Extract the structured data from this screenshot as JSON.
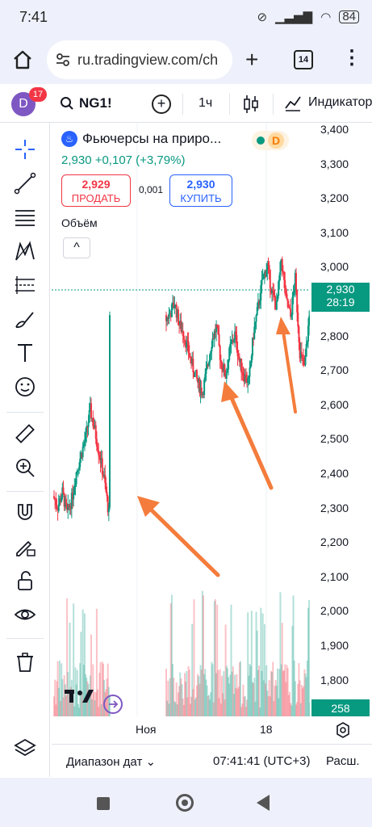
{
  "status_bar": {
    "time": "7:41",
    "battery": "84"
  },
  "browser": {
    "url": "ru.tradingview.com/ch",
    "tab_count": "14"
  },
  "header": {
    "avatar_letter": "D",
    "notifications": "17",
    "symbol": "NG1!",
    "interval": "1ч",
    "indicators_label": "Индикатор"
  },
  "legend": {
    "title": "Фьючерсы на приро...",
    "market_badge": "D",
    "price_change": "2,930  +0,107 (+3,79%)",
    "sell_price": "2,929",
    "sell_label": "ПРОДАТЬ",
    "spread": "0,001",
    "buy_price": "2,930",
    "buy_label": "КУПИТЬ",
    "volume_label": "Объём",
    "collapse_icon": "^"
  },
  "price_axis": {
    "ticks": [
      "3,400",
      "3,300",
      "3,200",
      "3,100",
      "3,000",
      "2,900",
      "2,800",
      "2,700",
      "2,600",
      "2,500",
      "2,400",
      "2,300",
      "2,200",
      "2,100",
      "2,000",
      "1,900",
      "1,800"
    ],
    "last_price": "2,930",
    "countdown": "28:19",
    "volume_value": "258",
    "color_up": "#089981",
    "color_down": "#f23645"
  },
  "time_axis": {
    "labels": [
      "Ноя",
      "18"
    ]
  },
  "bottom_bar": {
    "range_label": "Диапазон дат",
    "clock": "07:41:41 (UTC+3)",
    "extended": "Расш."
  },
  "chart_data": {
    "type": "candlestick",
    "title": "Фьючерсы на приро...",
    "xlabel": "",
    "ylabel": "",
    "ylim": [
      1.7,
      3.4
    ],
    "x_labels": [
      "Ноя",
      "18"
    ],
    "last_price": 2.93,
    "close_path": [
      2.33,
      2.3,
      2.34,
      2.28,
      2.32,
      2.4,
      2.45,
      2.5,
      2.58,
      2.52,
      2.45,
      2.38,
      2.28,
      2.84,
      2.86,
      2.89,
      2.83,
      2.8,
      2.75,
      2.7,
      2.66,
      2.63,
      2.7,
      2.78,
      2.82,
      2.72,
      2.68,
      2.76,
      2.8,
      2.72,
      2.68,
      2.66,
      2.8,
      2.88,
      2.96,
      3.0,
      2.92,
      2.88,
      3.02,
      2.9,
      2.85,
      2.96,
      2.75,
      2.7,
      2.85,
      2.93
    ]
  }
}
